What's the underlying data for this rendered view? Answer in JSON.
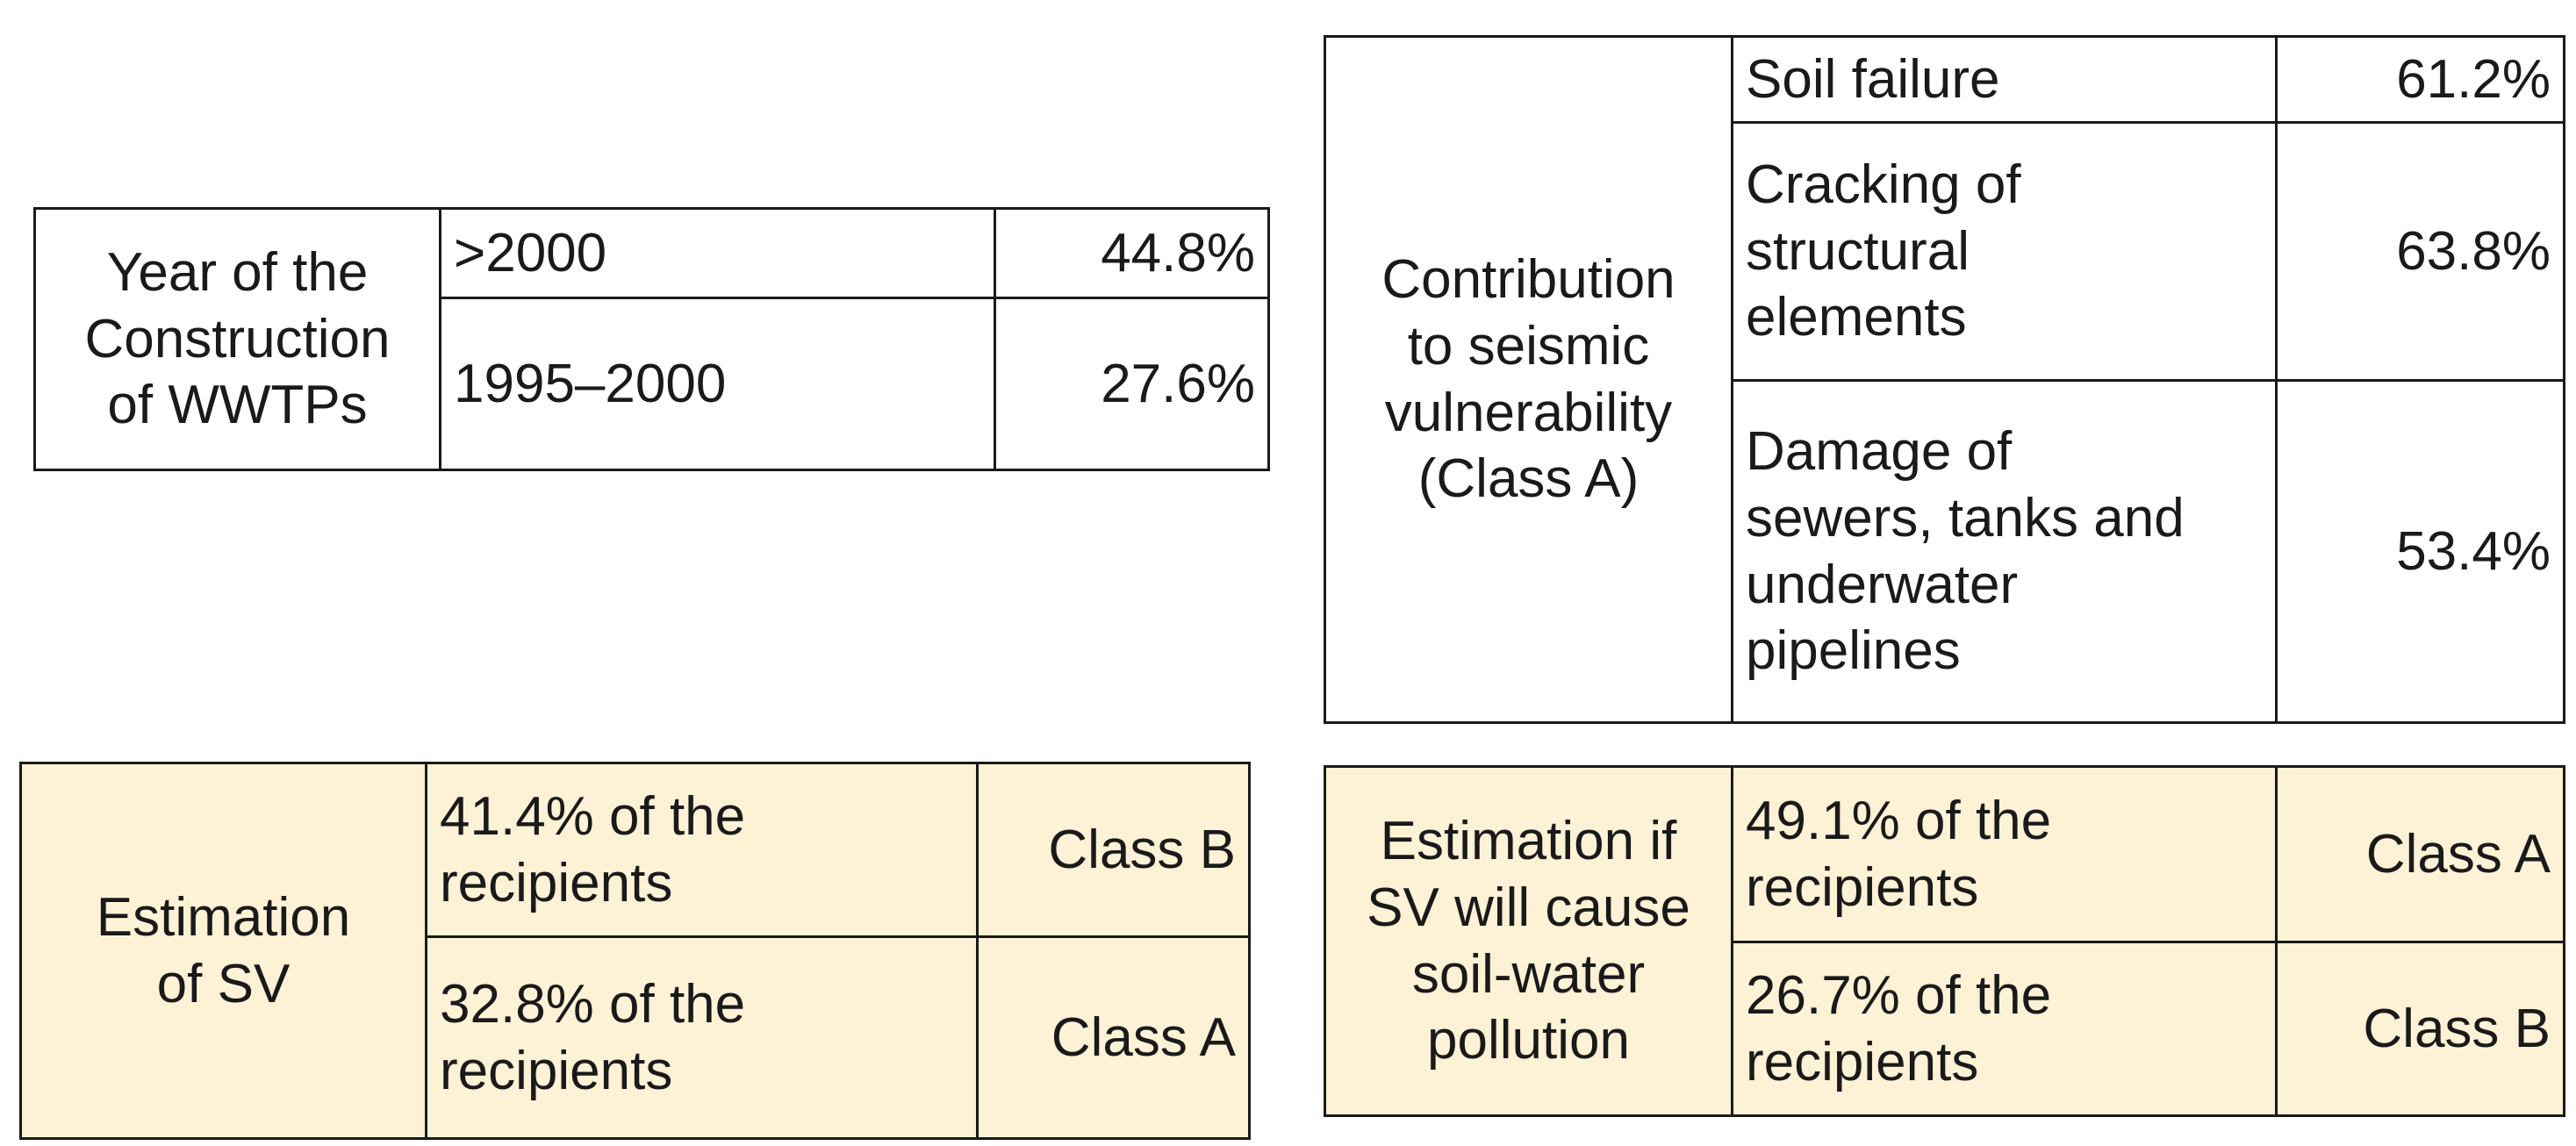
{
  "table_year": {
    "header": "Year of the\nConstruction\nof WWTPs",
    "rows": [
      {
        "label": ">2000",
        "value": "44.8%"
      },
      {
        "label": "1995–2000",
        "value": "27.6%"
      }
    ]
  },
  "table_seismic": {
    "header": "Contribution\nto seismic\nvulnerability\n(Class A)",
    "rows": [
      {
        "label": "Soil failure",
        "value": "61.2%"
      },
      {
        "label": "Cracking of\nstructural\nelements",
        "value": "63.8%"
      },
      {
        "label": "Damage of\nsewers, tanks and\nunderwater\npipelines",
        "value": "53.4%"
      }
    ]
  },
  "table_sv": {
    "header": "Estimation\nof SV",
    "rows": [
      {
        "label": "41.4% of the\nrecipients",
        "value": "Class B"
      },
      {
        "label": "32.8% of the\nrecipients",
        "value": "Class A"
      }
    ]
  },
  "table_pollution": {
    "header": "Estimation if\nSV will cause\nsoil-water\npollution",
    "rows": [
      {
        "label": "49.1% of the\nrecipients",
        "value": "Class A"
      },
      {
        "label": "26.7% of the\nrecipients",
        "value": "Class B"
      }
    ]
  }
}
